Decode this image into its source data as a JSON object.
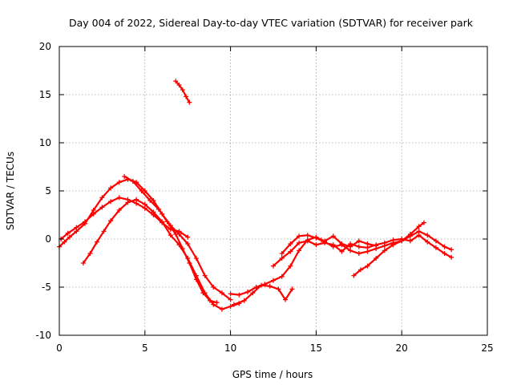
{
  "chart_data": {
    "type": "scatter",
    "title": "Day 004 of 2022, Sidereal Day-to-day VTEC variation (SDTVAR) for receiver park",
    "xlabel": "GPS time / hours",
    "ylabel": "SDTVAR / TECUs",
    "xlim": [
      0,
      25
    ],
    "ylim": [
      -10,
      20
    ],
    "xticks": [
      0,
      5,
      10,
      15,
      20,
      25
    ],
    "yticks": [
      -10,
      -5,
      0,
      5,
      10,
      15,
      20
    ],
    "grid": true,
    "marker": "plus",
    "color": "#ff0000",
    "series": [
      {
        "name": "track-1",
        "points": [
          [
            0.0,
            -0.8
          ],
          [
            0.3,
            -0.3
          ],
          [
            0.6,
            0.2
          ],
          [
            1.0,
            0.8
          ],
          [
            1.5,
            1.6
          ],
          [
            2.0,
            3.0
          ],
          [
            2.5,
            4.3
          ],
          [
            3.0,
            5.3
          ],
          [
            3.5,
            5.9
          ],
          [
            4.0,
            6.2
          ],
          [
            4.5,
            5.9
          ],
          [
            5.0,
            5.0
          ],
          [
            5.5,
            4.0
          ],
          [
            6.0,
            2.6
          ],
          [
            6.5,
            1.4
          ],
          [
            7.0,
            0.5
          ],
          [
            7.5,
            -0.5
          ],
          [
            8.0,
            -2.0
          ],
          [
            8.5,
            -3.8
          ],
          [
            9.0,
            -5.0
          ],
          [
            9.5,
            -5.6
          ],
          [
            10.0,
            -6.3
          ]
        ]
      },
      {
        "name": "track-2",
        "points": [
          [
            0.1,
            0.0
          ],
          [
            0.5,
            0.6
          ],
          [
            1.0,
            1.2
          ],
          [
            1.5,
            1.8
          ],
          [
            2.0,
            2.6
          ],
          [
            2.5,
            3.3
          ],
          [
            3.0,
            3.9
          ],
          [
            3.5,
            4.3
          ],
          [
            4.0,
            4.1
          ],
          [
            4.5,
            3.7
          ],
          [
            5.0,
            3.2
          ],
          [
            5.5,
            2.5
          ],
          [
            6.0,
            1.7
          ],
          [
            6.5,
            1.0
          ],
          [
            7.0,
            0.8
          ],
          [
            7.5,
            0.2
          ]
        ]
      },
      {
        "name": "track-3",
        "points": [
          [
            1.4,
            -2.5
          ],
          [
            1.8,
            -1.5
          ],
          [
            2.2,
            -0.3
          ],
          [
            2.6,
            0.8
          ],
          [
            3.0,
            1.9
          ],
          [
            3.5,
            3.0
          ],
          [
            4.0,
            3.8
          ],
          [
            4.5,
            4.1
          ],
          [
            5.0,
            3.6
          ],
          [
            5.5,
            2.8
          ],
          [
            6.0,
            1.8
          ],
          [
            6.5,
            0.4
          ],
          [
            7.0,
            -0.6
          ],
          [
            7.5,
            -2.0
          ],
          [
            8.0,
            -3.8
          ],
          [
            8.5,
            -5.6
          ],
          [
            9.0,
            -6.8
          ],
          [
            9.5,
            -7.3
          ],
          [
            10.0,
            -7.0
          ],
          [
            10.5,
            -6.7
          ]
        ]
      },
      {
        "name": "track-4",
        "points": [
          [
            3.8,
            6.5
          ],
          [
            4.3,
            6.0
          ],
          [
            4.8,
            5.0
          ],
          [
            5.3,
            4.0
          ],
          [
            5.8,
            3.1
          ],
          [
            6.3,
            1.8
          ],
          [
            6.8,
            0.5
          ],
          [
            7.2,
            -1.0
          ],
          [
            7.6,
            -2.5
          ],
          [
            8.0,
            -4.2
          ],
          [
            8.4,
            -5.6
          ],
          [
            8.8,
            -6.4
          ],
          [
            9.2,
            -6.6
          ]
        ]
      },
      {
        "name": "track-5",
        "points": [
          [
            6.8,
            16.4
          ],
          [
            7.0,
            16.0
          ],
          [
            7.2,
            15.5
          ],
          [
            7.4,
            14.8
          ],
          [
            7.6,
            14.2
          ]
        ]
      },
      {
        "name": "track-6",
        "points": [
          [
            10.0,
            -5.7
          ],
          [
            10.5,
            -5.8
          ],
          [
            11.0,
            -5.5
          ],
          [
            11.5,
            -5.0
          ],
          [
            12.0,
            -4.7
          ],
          [
            12.5,
            -4.3
          ],
          [
            13.0,
            -3.9
          ],
          [
            13.5,
            -2.8
          ],
          [
            14.0,
            -1.2
          ],
          [
            14.5,
            -0.1
          ],
          [
            15.0,
            0.2
          ],
          [
            15.5,
            -0.3
          ],
          [
            16.0,
            -0.8
          ],
          [
            16.5,
            -0.6
          ],
          [
            17.0,
            -1.2
          ],
          [
            17.5,
            -1.5
          ],
          [
            18.0,
            -1.3
          ],
          [
            18.5,
            -1.0
          ],
          [
            19.0,
            -0.7
          ],
          [
            19.5,
            -0.4
          ],
          [
            20.0,
            -0.2
          ],
          [
            20.5,
            0.3
          ],
          [
            21.0,
            0.8
          ],
          [
            21.5,
            0.4
          ],
          [
            22.0,
            -0.2
          ],
          [
            22.5,
            -0.8
          ],
          [
            22.9,
            -1.1
          ]
        ]
      },
      {
        "name": "track-7",
        "points": [
          [
            10.2,
            -6.8
          ],
          [
            10.8,
            -6.4
          ],
          [
            11.3,
            -5.6
          ],
          [
            11.8,
            -4.8
          ],
          [
            12.3,
            -4.9
          ],
          [
            12.8,
            -5.2
          ],
          [
            13.2,
            -6.3
          ],
          [
            13.6,
            -5.2
          ]
        ]
      },
      {
        "name": "track-8",
        "points": [
          [
            12.5,
            -2.8
          ],
          [
            13.0,
            -2.0
          ],
          [
            13.5,
            -1.3
          ],
          [
            14.0,
            -0.4
          ],
          [
            14.5,
            -0.2
          ],
          [
            15.0,
            -0.6
          ],
          [
            15.5,
            -0.4
          ],
          [
            16.0,
            -0.6
          ],
          [
            16.5,
            -1.3
          ],
          [
            17.0,
            -0.5
          ],
          [
            17.5,
            -0.8
          ],
          [
            18.0,
            -0.9
          ],
          [
            18.5,
            -0.6
          ],
          [
            19.0,
            -0.4
          ],
          [
            19.5,
            -0.1
          ],
          [
            20.0,
            0.0
          ],
          [
            20.5,
            -0.2
          ],
          [
            21.0,
            0.4
          ],
          [
            21.5,
            -0.3
          ],
          [
            22.0,
            -0.9
          ],
          [
            22.5,
            -1.5
          ],
          [
            22.9,
            -1.9
          ]
        ]
      },
      {
        "name": "track-9",
        "points": [
          [
            13.0,
            -1.5
          ],
          [
            13.5,
            -0.5
          ],
          [
            14.0,
            0.3
          ],
          [
            14.5,
            0.4
          ],
          [
            15.0,
            0.1
          ],
          [
            15.3,
            -0.1
          ]
        ]
      },
      {
        "name": "track-10",
        "points": [
          [
            15.5,
            -0.2
          ],
          [
            16.0,
            0.3
          ],
          [
            16.5,
            -0.5
          ],
          [
            17.0,
            -0.8
          ],
          [
            17.5,
            -0.2
          ],
          [
            18.0,
            -0.5
          ],
          [
            18.5,
            -0.7
          ]
        ]
      },
      {
        "name": "track-11",
        "points": [
          [
            17.2,
            -3.8
          ],
          [
            17.6,
            -3.2
          ],
          [
            18.0,
            -2.8
          ],
          [
            18.5,
            -2.0
          ],
          [
            19.0,
            -1.2
          ],
          [
            19.5,
            -0.6
          ],
          [
            20.0,
            -0.2
          ],
          [
            20.5,
            0.5
          ],
          [
            21.0,
            1.3
          ],
          [
            21.3,
            1.7
          ]
        ]
      }
    ]
  }
}
